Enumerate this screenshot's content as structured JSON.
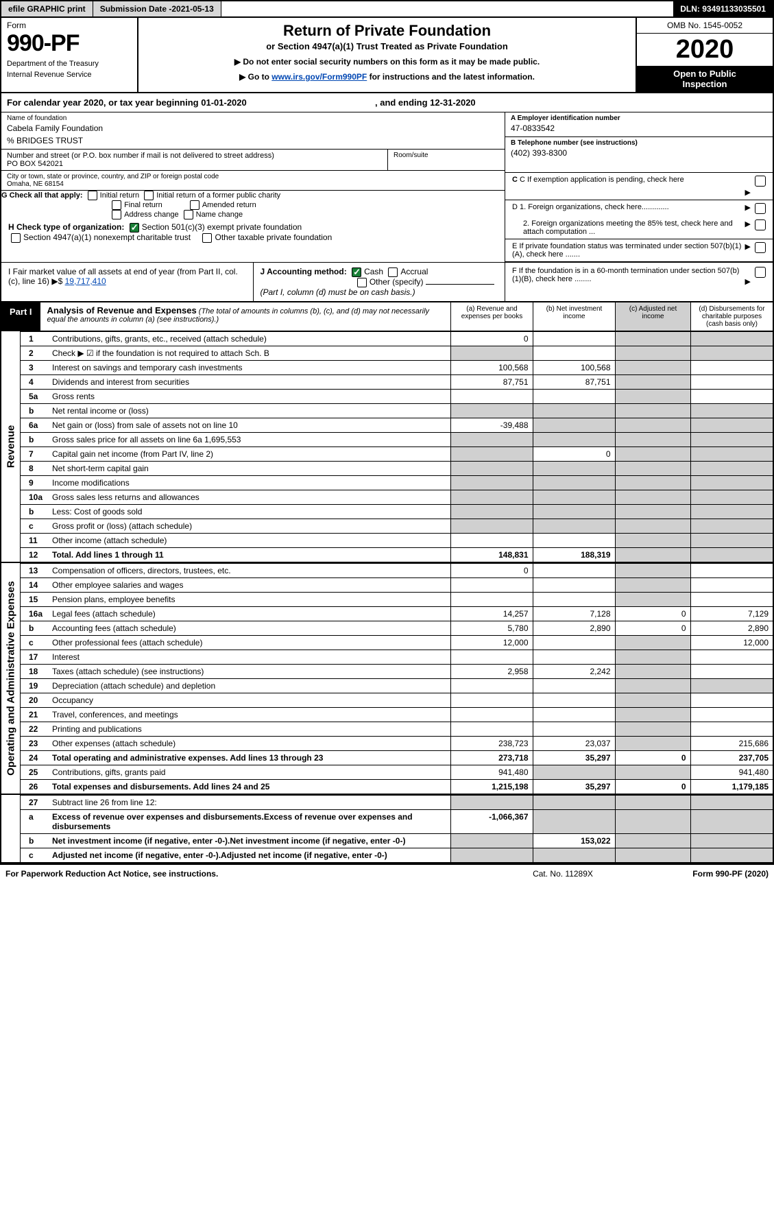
{
  "topbar": {
    "efile": "efile GRAPHIC print",
    "subdate_lbl": "Submission Date - ",
    "subdate": "2021-05-13",
    "dln_lbl": "DLN: ",
    "dln": "93491133035501"
  },
  "hdr": {
    "formword": "Form",
    "formno": "990-PF",
    "dept1": "Department of the Treasury",
    "dept2": "Internal Revenue Service",
    "title": "Return of Private Foundation",
    "subtitle": "or Section 4947(a)(1) Trust Treated as Private Foundation",
    "instr1": "▶ Do not enter social security numbers on this form as it may be made public.",
    "instr2_pre": "▶ Go to ",
    "instr2_link": "www.irs.gov/Form990PF",
    "instr2_post": " for instructions and the latest information.",
    "omb": "OMB No. 1545-0052",
    "year": "2020",
    "open1": "Open to Public",
    "open2": "Inspection"
  },
  "caly": {
    "pre": "For calendar year 2020, or tax year beginning ",
    "begin": "01-01-2020",
    "mid": " , and ending ",
    "end": "12-31-2020"
  },
  "id": {
    "name_lbl": "Name of foundation",
    "name": "Cabela Family Foundation",
    "careof": "% BRIDGES TRUST",
    "addr_lbl": "Number and street (or P.O. box number if mail is not delivered to street address)",
    "addr": "PO BOX 542021",
    "room_lbl": "Room/suite",
    "city_lbl": "City or town, state or province, country, and ZIP or foreign postal code",
    "city": "Omaha, NE  68154",
    "ein_lbl": "A Employer identification number",
    "ein": "47-0833542",
    "tel_lbl": "B Telephone number (see instructions)",
    "tel": "(402) 393-8300",
    "c_lbl": "C If exemption application is pending, check here",
    "d1": "D 1. Foreign organizations, check here.............",
    "d2": "2. Foreign organizations meeting the 85% test, check here and attach computation ...",
    "e": "E  If private foundation status was terminated under section 507(b)(1)(A), check here .......",
    "f": "F  If the foundation is in a 60-month termination under section 507(b)(1)(B), check here ........"
  },
  "g": {
    "lbl": "G Check all that apply:",
    "o1": "Initial return",
    "o2": "Initial return of a former public charity",
    "o3": "Final return",
    "o4": "Amended return",
    "o5": "Address change",
    "o6": "Name change"
  },
  "h": {
    "lbl": "H Check type of organization:",
    "o1": "Section 501(c)(3) exempt private foundation",
    "o2": "Section 4947(a)(1) nonexempt charitable trust",
    "o3": "Other taxable private foundation"
  },
  "i": {
    "lbl": "I Fair market value of all assets at end of year (from Part II, col. (c), line 16) ▶$",
    "val": "19,717,410"
  },
  "j": {
    "lbl": "J Accounting method:",
    "cash": "Cash",
    "accr": "Accrual",
    "other": "Other (specify)",
    "note": "(Part I, column (d) must be on cash basis.)"
  },
  "part1": {
    "tab": "Part I",
    "title": "Analysis of Revenue and Expenses",
    "note": "(The total of amounts in columns (b), (c), and (d) may not necessarily equal the amounts in column (a) (see instructions).)",
    "cols": {
      "a": "(a)   Revenue and expenses per books",
      "b": "(b)   Net investment income",
      "c": "(c)   Adjusted net income",
      "d": "(d)   Disbursements for charitable purposes (cash basis only)"
    }
  },
  "side": {
    "rev": "Revenue",
    "exp": "Operating and Administrative Expenses"
  },
  "rows": [
    {
      "n": "1",
      "l": "Contributions, gifts, grants, etc., received (attach schedule)",
      "a": "0",
      "dGrey": true
    },
    {
      "n": "2",
      "l": "Check ▶ ☑ if the foundation is not required to attach Sch. B",
      "aGrey": true,
      "dGrey": true,
      "dots": true
    },
    {
      "n": "3",
      "l": "Interest on savings and temporary cash investments",
      "a": "100,568",
      "b": "100,568"
    },
    {
      "n": "4",
      "l": "Dividends and interest from securities",
      "a": "87,751",
      "b": "87,751",
      "dots": true
    },
    {
      "n": "5a",
      "l": "Gross rents",
      "dots": true
    },
    {
      "n": "b",
      "l": "Net rental income or (loss)",
      "aGrey": true,
      "bGrey": true,
      "cGrey": true,
      "dGrey": true
    },
    {
      "n": "6a",
      "l": "Net gain or (loss) from sale of assets not on line 10",
      "a": "-39,488",
      "bGrey": true,
      "cGrey": true,
      "dGrey": true
    },
    {
      "n": "b",
      "l": "Gross sales price for all assets on line 6a            1,695,553",
      "aGrey": true,
      "bGrey": true,
      "cGrey": true,
      "dGrey": true
    },
    {
      "n": "7",
      "l": "Capital gain net income (from Part IV, line 2)",
      "aGrey": true,
      "b": "0",
      "cGrey": true,
      "dGrey": true,
      "dots": true
    },
    {
      "n": "8",
      "l": "Net short-term capital gain",
      "aGrey": true,
      "bGrey": true,
      "dGrey": true,
      "dots": true
    },
    {
      "n": "9",
      "l": "Income modifications",
      "aGrey": true,
      "bGrey": true,
      "dGrey": true,
      "dots": true
    },
    {
      "n": "10a",
      "l": "Gross sales less returns and allowances",
      "aGrey": true,
      "bGrey": true,
      "cGrey": true,
      "dGrey": true
    },
    {
      "n": "b",
      "l": "Less: Cost of goods sold",
      "aGrey": true,
      "bGrey": true,
      "cGrey": true,
      "dGrey": true,
      "dots": true
    },
    {
      "n": "c",
      "l": "Gross profit or (loss) (attach schedule)",
      "aGrey": true,
      "bGrey": true,
      "dGrey": true,
      "dots": true
    },
    {
      "n": "11",
      "l": "Other income (attach schedule)",
      "dGrey": true,
      "dots": true
    },
    {
      "n": "12",
      "l": "Total. Add lines 1 through 11",
      "a": "148,831",
      "b": "188,319",
      "dGrey": true,
      "bold": true,
      "dots": true
    }
  ],
  "rows2": [
    {
      "n": "13",
      "l": "Compensation of officers, directors, trustees, etc.",
      "a": "0"
    },
    {
      "n": "14",
      "l": "Other employee salaries and wages",
      "dots": true
    },
    {
      "n": "15",
      "l": "Pension plans, employee benefits",
      "dots": true
    },
    {
      "n": "16a",
      "l": "Legal fees (attach schedule)",
      "a": "14,257",
      "b": "7,128",
      "c": "0",
      "d": "7,129",
      "dots": true
    },
    {
      "n": "b",
      "l": "Accounting fees (attach schedule)",
      "a": "5,780",
      "b": "2,890",
      "c": "0",
      "d": "2,890",
      "dots": true
    },
    {
      "n": "c",
      "l": "Other professional fees (attach schedule)",
      "a": "12,000",
      "d": "12,000",
      "dots": true
    },
    {
      "n": "17",
      "l": "Interest",
      "dots": true
    },
    {
      "n": "18",
      "l": "Taxes (attach schedule) (see instructions)",
      "a": "2,958",
      "b": "2,242",
      "dots": true
    },
    {
      "n": "19",
      "l": "Depreciation (attach schedule) and depletion",
      "dGrey": true,
      "dots": true
    },
    {
      "n": "20",
      "l": "Occupancy",
      "dots": true
    },
    {
      "n": "21",
      "l": "Travel, conferences, and meetings",
      "dots": true
    },
    {
      "n": "22",
      "l": "Printing and publications",
      "dots": true
    },
    {
      "n": "23",
      "l": "Other expenses (attach schedule)",
      "a": "238,723",
      "b": "23,037",
      "d": "215,686",
      "dots": true
    },
    {
      "n": "24",
      "l": "Total operating and administrative expenses. Add lines 13 through 23",
      "a": "273,718",
      "b": "35,297",
      "c": "0",
      "d": "237,705",
      "bold": true,
      "dots": true
    },
    {
      "n": "25",
      "l": "Contributions, gifts, grants paid",
      "a": "941,480",
      "bGrey": true,
      "cGrey": true,
      "d": "941,480",
      "dots": true
    },
    {
      "n": "26",
      "l": "Total expenses and disbursements. Add lines 24 and 25",
      "a": "1,215,198",
      "b": "35,297",
      "c": "0",
      "d": "1,179,185",
      "bold": true
    }
  ],
  "rows3": [
    {
      "n": "27",
      "l": "Subtract line 26 from line 12:",
      "aGrey": true,
      "bGrey": true,
      "cGrey": true,
      "dGrey": true
    },
    {
      "n": "a",
      "l": "Excess of revenue over expenses and disbursements",
      "a": "-1,066,367",
      "bGrey": true,
      "cGrey": true,
      "dGrey": true,
      "bold": true
    },
    {
      "n": "b",
      "l": "Net investment income (if negative, enter -0-)",
      "aGrey": true,
      "b": "153,022",
      "cGrey": true,
      "dGrey": true,
      "bold": true
    },
    {
      "n": "c",
      "l": "Adjusted net income (if negative, enter -0-)",
      "aGrey": true,
      "bGrey": true,
      "dGrey": true,
      "bold": true,
      "dots": true
    }
  ],
  "footer": {
    "l": "For Paperwork Reduction Act Notice, see instructions.",
    "m": "Cat. No. 11289X",
    "r": "Form 990-PF (2020)"
  },
  "colors": {
    "link": "#0047b3",
    "grey": "#d0d0d0",
    "topbtn": "#d7d7d7",
    "check": "#1a7f37"
  }
}
